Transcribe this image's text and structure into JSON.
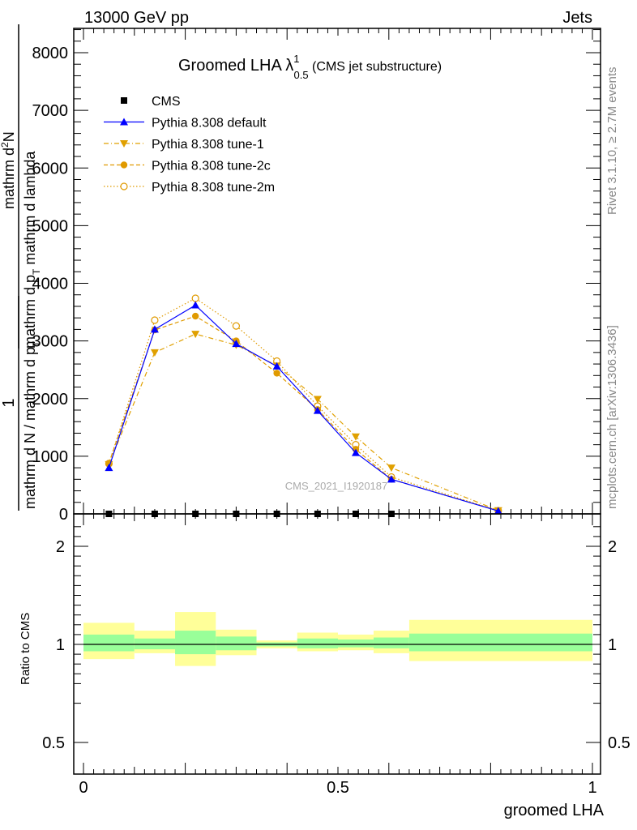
{
  "header": {
    "left": "13000 GeV pp",
    "right": "Jets"
  },
  "side": {
    "rivet": "Rivet 3.1.10, ≥ 2.7M events",
    "mcplots": "mcplots.cern.ch [arXiv:1306.3436]"
  },
  "watermark": "CMS_2021_I1920187",
  "title": {
    "main": "Groomed LHA ",
    "symbol": "λ",
    "sup": "1",
    "sub": "0.5",
    "note": " (CMS jet substructure)"
  },
  "ylabel_upper": {
    "frac1_num": "1",
    "frac1_den": "mathrm d N / mathrm d p",
    "frac1_den_sub": "T",
    "frac2_num": "mathrm d",
    "frac2_num_sup": "2",
    "frac2_num_rest": "N",
    "frac2_den": "mathrm d p",
    "frac2_den_sub": "T",
    "frac2_den_rest": " mathrm d lambda"
  },
  "ylabel_lower": "Ratio to CMS",
  "xlabel": "groomed LHA",
  "legend": [
    {
      "label": "CMS",
      "color": "#000000",
      "marker": "square",
      "line": "none"
    },
    {
      "label": "Pythia 8.308 default",
      "color": "#0000ff",
      "marker": "triangle-up",
      "line": "solid"
    },
    {
      "label": "Pythia 8.308 tune-1",
      "color": "#e0a000",
      "marker": "triangle-down",
      "line": "dashdot"
    },
    {
      "label": "Pythia 8.308 tune-2c",
      "color": "#e09a00",
      "marker": "circle",
      "line": "dashed"
    },
    {
      "label": "Pythia 8.308 tune-2m",
      "color": "#e09a00",
      "marker": "circle-open",
      "line": "dotted"
    }
  ],
  "chart_data": [
    {
      "type": "line",
      "xlim": [
        0,
        1
      ],
      "ylim": [
        0,
        8400
      ],
      "yticks": [
        0,
        1000,
        2000,
        3000,
        4000,
        5000,
        6000,
        7000,
        8000
      ],
      "ytick_labels": [
        "0",
        "1000",
        "2000",
        "3000",
        "4000",
        "5000",
        "6000",
        "7000",
        "8000"
      ],
      "x": [
        0.05,
        0.14,
        0.22,
        0.3,
        0.38,
        0.46,
        0.535,
        0.605,
        0.815
      ],
      "series": [
        {
          "name": "CMS",
          "values": [
            0,
            0,
            0,
            0,
            0,
            0,
            0,
            0,
            null
          ]
        },
        {
          "name": "Pythia 8.308 default",
          "values": [
            800,
            3200,
            3620,
            2950,
            2560,
            1790,
            1060,
            600,
            50
          ]
        },
        {
          "name": "Pythia 8.308 tune-1",
          "values": [
            860,
            2800,
            3120,
            2930,
            2570,
            1990,
            1340,
            800,
            60
          ]
        },
        {
          "name": "Pythia 8.308 tune-2c",
          "values": [
            880,
            3190,
            3430,
            3000,
            2440,
            1810,
            1120,
            600,
            55
          ]
        },
        {
          "name": "Pythia 8.308 tune-2m",
          "values": [
            870,
            3360,
            3740,
            3260,
            2650,
            1870,
            1200,
            640,
            55
          ]
        }
      ]
    },
    {
      "type": "area",
      "xlim": [
        0,
        1
      ],
      "ylim": [
        0.35,
        2.3
      ],
      "yticks": [
        0.5,
        1,
        2
      ],
      "ytick_labels": [
        "0.5",
        "1",
        "2"
      ],
      "xticks": [
        0,
        0.5,
        1
      ],
      "xtick_labels": [
        "0",
        "0.5",
        "1"
      ],
      "bins": [
        [
          0,
          0.1
        ],
        [
          0.1,
          0.18
        ],
        [
          0.18,
          0.26
        ],
        [
          0.26,
          0.34
        ],
        [
          0.34,
          0.42
        ],
        [
          0.42,
          0.5
        ],
        [
          0.5,
          0.57
        ],
        [
          0.57,
          0.64
        ],
        [
          0.64,
          1.0
        ]
      ],
      "inner_band": [
        [
          0.93,
          1.1
        ],
        [
          0.95,
          1.06
        ],
        [
          0.9,
          1.14
        ],
        [
          0.94,
          1.08
        ],
        [
          0.98,
          1.02
        ],
        [
          0.96,
          1.06
        ],
        [
          0.97,
          1.05
        ],
        [
          0.96,
          1.07
        ],
        [
          0.93,
          1.11
        ]
      ],
      "outer_band": [
        [
          0.85,
          1.22
        ],
        [
          0.91,
          1.14
        ],
        [
          0.78,
          1.33
        ],
        [
          0.89,
          1.15
        ],
        [
          0.96,
          1.04
        ],
        [
          0.93,
          1.12
        ],
        [
          0.94,
          1.1
        ],
        [
          0.91,
          1.14
        ],
        [
          0.83,
          1.25
        ]
      ],
      "inner_color": "#99ff99",
      "outer_color": "#ffff99",
      "reference": 1
    }
  ]
}
